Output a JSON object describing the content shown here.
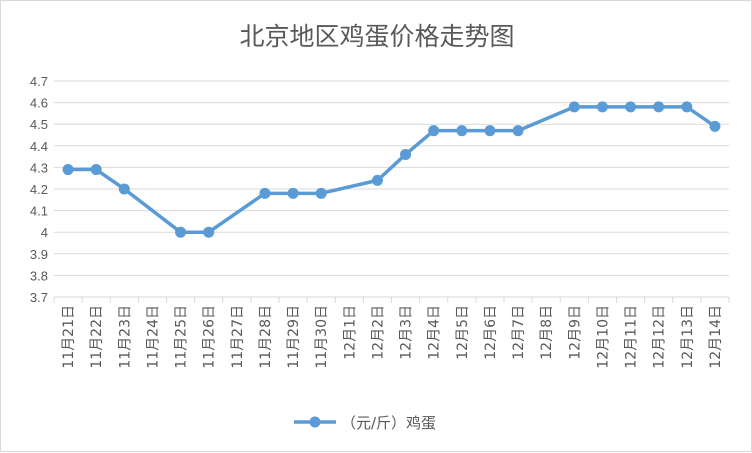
{
  "chart_data": {
    "type": "line",
    "title": "北京地区鸡蛋价格走势图",
    "categories": [
      "11月21日",
      "11月22日",
      "11月23日",
      "11月24日",
      "11月25日",
      "11月26日",
      "11月27日",
      "11月28日",
      "11月29日",
      "11月30日",
      "12月1日",
      "12月2日",
      "12月3日",
      "12月4日",
      "12月5日",
      "12月6日",
      "12月7日",
      "12月8日",
      "12月9日",
      "12月10日",
      "12月11日",
      "12月12日",
      "12月13日",
      "12月14日"
    ],
    "series": [
      {
        "name": "（元/斤）鸡蛋",
        "values": [
          4.29,
          4.29,
          4.2,
          null,
          4.0,
          4.0,
          null,
          4.18,
          4.18,
          4.18,
          null,
          4.24,
          4.36,
          4.47,
          4.47,
          4.47,
          4.47,
          null,
          4.58,
          4.58,
          4.58,
          4.58,
          4.58,
          4.49
        ],
        "color": "#5b9bd5"
      }
    ],
    "ylim": [
      3.7,
      4.7
    ],
    "yticks": [
      "3.7",
      "3.8",
      "3.9",
      "4",
      "4.1",
      "4.2",
      "4.3",
      "4.4",
      "4.5",
      "4.6",
      "4.7"
    ],
    "grid": true,
    "legend": "bottom"
  }
}
